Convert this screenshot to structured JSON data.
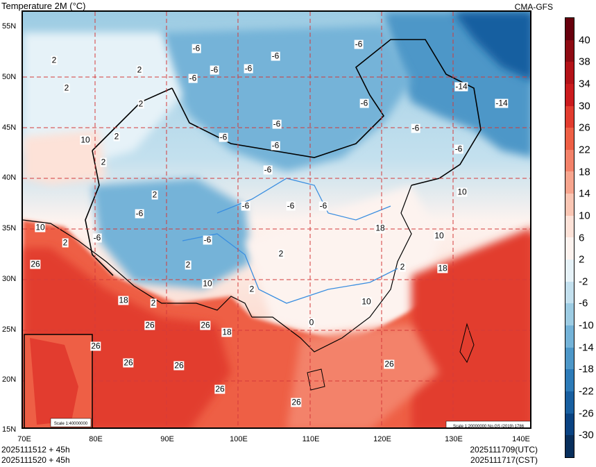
{
  "header": {
    "title": "Temperature  2M (°C)",
    "model": "CMA-GFS"
  },
  "footer": {
    "init_utc": "2025111512 + 45h",
    "init_cst": "2025111520 + 45h",
    "valid_utc": "2025111709(UTC)",
    "valid_cst": "2025111717(CST)"
  },
  "axes": {
    "lon_labels": [
      "70E",
      "80E",
      "90E",
      "100E",
      "110E",
      "120E",
      "130E",
      "140E"
    ],
    "lat_labels": [
      "55N",
      "50N",
      "45N",
      "40N",
      "35N",
      "30N",
      "25N",
      "20N",
      "15N"
    ]
  },
  "inset": {
    "scale": "Scale 1:40000000"
  },
  "map_note": "Scale 1:20000000 No.GS (2019) 1786",
  "colorbar": {
    "labels": [
      "40",
      "38",
      "34",
      "30",
      "26",
      "22",
      "18",
      "14",
      "10",
      "6",
      "2",
      "-2",
      "-6",
      "-10",
      "-14",
      "-18",
      "-22",
      "-26",
      "-30"
    ],
    "colors": [
      "#67000d",
      "#8e0a13",
      "#b31218",
      "#cb1b1e",
      "#e23c2f",
      "#ee5f45",
      "#f3826a",
      "#f7a58e",
      "#fac6b4",
      "#fde2d8",
      "#fdf3ef",
      "#e6f2f8",
      "#c3e0ee",
      "#9dcce3",
      "#74b3d8",
      "#4d97c8",
      "#2d7bb8",
      "#185fa0",
      "#0a4382",
      "#082f5c"
    ]
  },
  "contour_labels": [
    {
      "text": "2"
    },
    {
      "text": "2"
    },
    {
      "text": "2"
    },
    {
      "text": "2"
    },
    {
      "text": "2"
    },
    {
      "text": "10"
    },
    {
      "text": "2"
    },
    {
      "text": "2"
    },
    {
      "text": "-6"
    },
    {
      "text": "-6"
    },
    {
      "text": "-6"
    },
    {
      "text": "-6"
    },
    {
      "text": "-6"
    },
    {
      "text": "-6"
    },
    {
      "text": "-6"
    },
    {
      "text": "-6"
    },
    {
      "text": "-6"
    },
    {
      "text": "-6"
    },
    {
      "text": "-6"
    },
    {
      "text": "-6"
    },
    {
      "text": "-14"
    },
    {
      "text": "-14"
    },
    {
      "text": "-6"
    },
    {
      "text": "-6"
    },
    {
      "text": "-6"
    },
    {
      "text": "-6"
    },
    {
      "text": "-6"
    },
    {
      "text": "-6"
    },
    {
      "text": "-6"
    },
    {
      "text": "2"
    },
    {
      "text": "2"
    },
    {
      "text": "10"
    },
    {
      "text": "10"
    },
    {
      "text": "2"
    },
    {
      "text": "26"
    },
    {
      "text": "18"
    },
    {
      "text": "2"
    },
    {
      "text": "10"
    },
    {
      "text": "2"
    },
    {
      "text": "26"
    },
    {
      "text": "26"
    },
    {
      "text": "18"
    },
    {
      "text": "26"
    },
    {
      "text": "26"
    },
    {
      "text": "26"
    },
    {
      "text": "26"
    },
    {
      "text": "26"
    },
    {
      "text": "26"
    },
    {
      "text": "18"
    },
    {
      "text": "10"
    },
    {
      "text": "18"
    },
    {
      "text": "10"
    },
    {
      "text": "2"
    },
    {
      "text": "0"
    }
  ]
}
